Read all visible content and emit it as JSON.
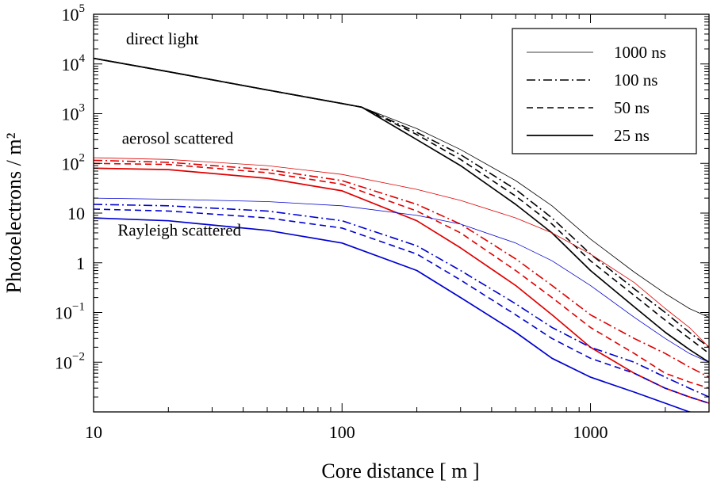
{
  "chart_data": {
    "type": "line",
    "xlabel": "Core distance  [ m ]",
    "ylabel": "Photoelectrons / m²",
    "xscale": "log",
    "yscale": "log",
    "xlim": [
      10,
      3000
    ],
    "ylim": [
      0.001,
      100000
    ],
    "x_ticks": [
      {
        "value": 10,
        "label": "10"
      },
      {
        "value": 100,
        "label": "100"
      },
      {
        "value": 1000,
        "label": "1000"
      }
    ],
    "y_ticks": [
      {
        "value": 100000,
        "base": "10",
        "exp": "5"
      },
      {
        "value": 10000,
        "base": "10",
        "exp": "4"
      },
      {
        "value": 1000,
        "base": "10",
        "exp": "3"
      },
      {
        "value": 100,
        "base": "10",
        "exp": "2"
      },
      {
        "value": 10,
        "base": "10",
        "exp": ""
      },
      {
        "value": 1,
        "base": "1",
        "exp": ""
      },
      {
        "value": 0.1,
        "base": "10",
        "exp": "−1"
      },
      {
        "value": 0.01,
        "base": "10",
        "exp": "−2"
      }
    ],
    "grid": false,
    "legend": {
      "position": "top-right",
      "entries": [
        {
          "label": "1000 ns",
          "style": "thin"
        },
        {
          "label": "100 ns",
          "style": "dashdot"
        },
        {
          "label": "50 ns",
          "style": "dashed"
        },
        {
          "label": "25 ns",
          "style": "solid"
        }
      ]
    },
    "annotations": [
      {
        "text": "direct light",
        "x": 13.5,
        "y": 25000
      },
      {
        "text": "aerosol scattered",
        "x": 13,
        "y": 250
      },
      {
        "text": "Rayleigh scattered",
        "x": 12.5,
        "y": 3.5
      }
    ],
    "colors": {
      "direct": "#000000",
      "aerosol": "#e00000",
      "rayleigh": "#0000d0"
    },
    "series": [
      {
        "group": "direct",
        "gate": "1000 ns",
        "style": "thin",
        "x": [
          10,
          20,
          50,
          100,
          120,
          200,
          300,
          500,
          700,
          1000,
          1500,
          2000,
          2500,
          3000
        ],
        "y": [
          13000,
          7000,
          3000,
          1600,
          1350,
          500,
          190,
          45,
          14,
          3,
          0.65,
          0.24,
          0.12,
          0.08
        ]
      },
      {
        "group": "direct",
        "gate": "100 ns",
        "style": "dashdot",
        "x": [
          10,
          20,
          50,
          100,
          120,
          200,
          300,
          500,
          700,
          1000,
          1500,
          2000,
          2500,
          3000
        ],
        "y": [
          13000,
          7000,
          3000,
          1600,
          1350,
          420,
          150,
          30,
          8,
          1.5,
          0.3,
          0.1,
          0.04,
          0.02
        ]
      },
      {
        "group": "direct",
        "gate": "50 ns",
        "style": "dashed",
        "x": [
          10,
          20,
          50,
          100,
          120,
          200,
          300,
          500,
          700,
          1000,
          1500,
          2000,
          2500,
          3000
        ],
        "y": [
          13000,
          7000,
          3000,
          1600,
          1350,
          380,
          120,
          22,
          6,
          1.1,
          0.22,
          0.07,
          0.03,
          0.015
        ]
      },
      {
        "group": "direct",
        "gate": "25 ns",
        "style": "solid",
        "x": [
          10,
          20,
          50,
          100,
          120,
          200,
          300,
          500,
          700,
          1000,
          1500,
          2000,
          2500,
          3000
        ],
        "y": [
          13000,
          7000,
          3000,
          1600,
          1350,
          300,
          90,
          15,
          4,
          0.7,
          0.13,
          0.04,
          0.018,
          0.01
        ]
      },
      {
        "group": "aerosol",
        "gate": "1000 ns",
        "style": "thin",
        "x": [
          10,
          20,
          50,
          100,
          200,
          300,
          500,
          700,
          1000,
          1500,
          2000,
          2500,
          3000
        ],
        "y": [
          130,
          120,
          90,
          60,
          30,
          18,
          8,
          4,
          1.5,
          0.4,
          0.12,
          0.05,
          0.02
        ]
      },
      {
        "group": "aerosol",
        "gate": "100 ns",
        "style": "dashdot",
        "x": [
          10,
          20,
          50,
          100,
          200,
          300,
          500,
          700,
          1000,
          1500,
          2000,
          2500,
          3000
        ],
        "y": [
          115,
          105,
          75,
          45,
          15,
          6,
          1.2,
          0.35,
          0.09,
          0.03,
          0.015,
          0.008,
          0.005
        ]
      },
      {
        "group": "aerosol",
        "gate": "50 ns",
        "style": "dashed",
        "x": [
          10,
          20,
          50,
          100,
          200,
          300,
          500,
          700,
          1000,
          1500,
          2000,
          2500,
          3000
        ],
        "y": [
          100,
          95,
          65,
          38,
          11,
          4,
          0.7,
          0.2,
          0.05,
          0.015,
          0.006,
          0.004,
          0.003
        ]
      },
      {
        "group": "aerosol",
        "gate": "25 ns",
        "style": "solid",
        "x": [
          10,
          20,
          50,
          100,
          200,
          300,
          500,
          700,
          1000,
          1500,
          2000,
          2500,
          3000
        ],
        "y": [
          80,
          75,
          50,
          28,
          7,
          2,
          0.35,
          0.09,
          0.02,
          0.006,
          0.003,
          0.002,
          0.0015
        ]
      },
      {
        "group": "rayleigh",
        "gate": "1000 ns",
        "style": "thin",
        "x": [
          10,
          20,
          50,
          100,
          200,
          300,
          500,
          700,
          1000,
          1500,
          2000,
          2500,
          3000
        ],
        "y": [
          20,
          19,
          17,
          14,
          9,
          6,
          2.5,
          1.1,
          0.35,
          0.08,
          0.03,
          0.015,
          0.01
        ]
      },
      {
        "group": "rayleigh",
        "gate": "100 ns",
        "style": "dashdot",
        "x": [
          10,
          20,
          50,
          100,
          200,
          300,
          500,
          700,
          1000,
          1500,
          2000,
          2500,
          3000
        ],
        "y": [
          15,
          14,
          11,
          7,
          2.2,
          0.7,
          0.15,
          0.05,
          0.02,
          0.01,
          0.005,
          0.003,
          0.002
        ]
      },
      {
        "group": "rayleigh",
        "gate": "50 ns",
        "style": "dashed",
        "x": [
          10,
          20,
          50,
          100,
          200,
          300,
          500,
          700,
          1000,
          1500,
          2000,
          2500,
          3000
        ],
        "y": [
          12,
          11,
          8,
          5,
          1.5,
          0.45,
          0.09,
          0.03,
          0.012,
          0.006,
          0.003,
          0.002,
          0.0015
        ]
      },
      {
        "group": "rayleigh",
        "gate": "25 ns",
        "style": "solid",
        "x": [
          10,
          20,
          50,
          100,
          200,
          300,
          500,
          700,
          1000,
          1500,
          2000,
          2500,
          3000
        ],
        "y": [
          8,
          7,
          4.5,
          2.5,
          0.7,
          0.2,
          0.04,
          0.012,
          0.005,
          0.0025,
          0.0015,
          0.001,
          0.0008
        ]
      }
    ]
  }
}
